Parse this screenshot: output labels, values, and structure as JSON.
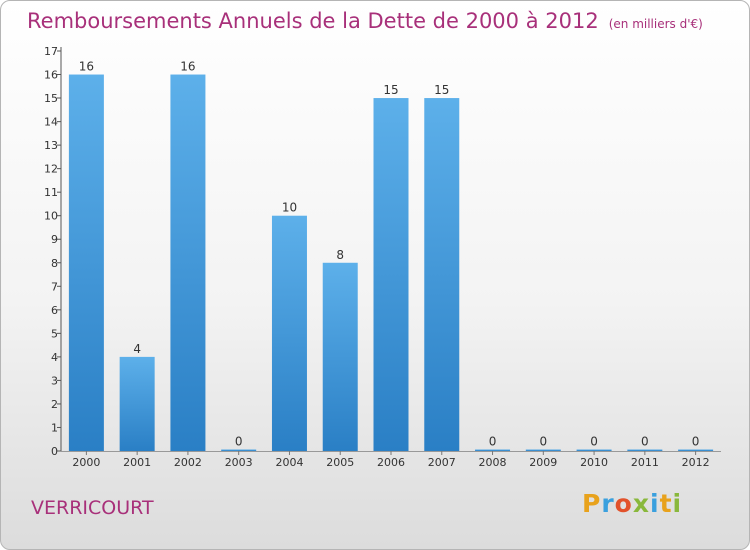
{
  "header": {
    "title": "Remboursements Annuels de la Dette de 2000 à 2012",
    "unit": "(en milliers d'€)"
  },
  "commune": "VERRICOURT",
  "brand": {
    "letters": [
      "P",
      "r",
      "o",
      "x",
      "i",
      "t",
      "i"
    ],
    "colors": [
      "#e8a21c",
      "#3aa0de",
      "#e2522b",
      "#89b83c",
      "#3aa0de",
      "#e8a21c",
      "#89b83c"
    ]
  },
  "colors": {
    "bar_light": "#5db0ea",
    "bar_dark": "#2a7fc5",
    "title": "#a8307a"
  },
  "chart_data": {
    "type": "bar",
    "categories": [
      "2000",
      "2001",
      "2002",
      "2003",
      "2004",
      "2005",
      "2006",
      "2007",
      "2008",
      "2009",
      "2010",
      "2011",
      "2012"
    ],
    "values": [
      16,
      4,
      16,
      0,
      10,
      8,
      15,
      15,
      0,
      0,
      0,
      0,
      0
    ],
    "data_labels": [
      "16",
      "4",
      "16",
      "0",
      "10",
      "8",
      "15",
      "15",
      "0",
      "0",
      "0",
      "0",
      "0"
    ],
    "ylim": [
      0,
      17
    ],
    "yticks": [
      "0",
      "1",
      "2",
      "3",
      "4",
      "5",
      "6",
      "7",
      "8",
      "9",
      "10",
      "11",
      "12",
      "13",
      "14",
      "15",
      "16",
      "17"
    ],
    "title": "Remboursements Annuels de la Dette de 2000 à 2012",
    "xlabel": "",
    "ylabel": "",
    "grid": false,
    "legend": "none"
  }
}
